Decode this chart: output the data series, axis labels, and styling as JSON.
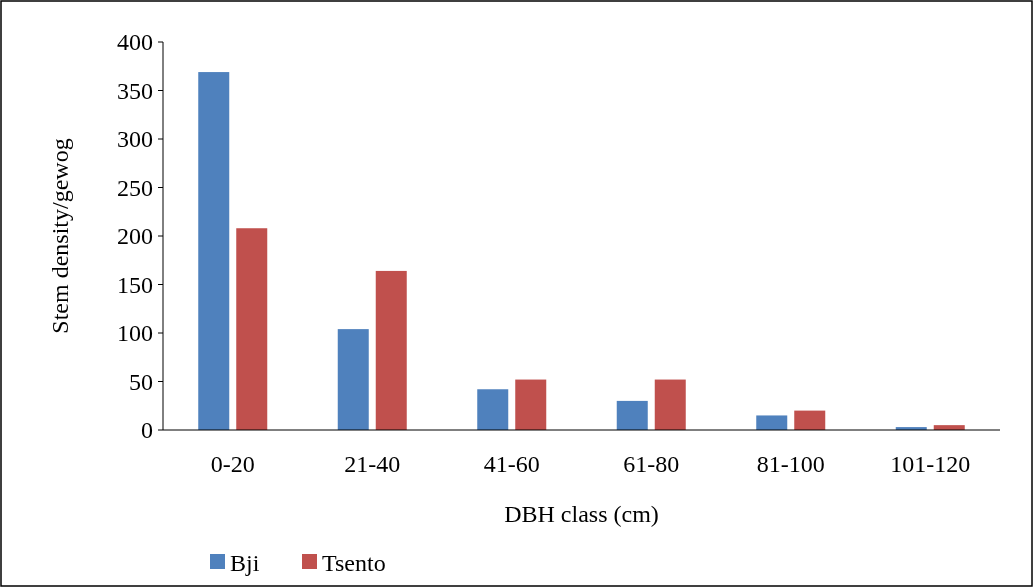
{
  "chart_data": {
    "type": "bar",
    "xlabel": "DBH class (cm)",
    "ylabel": "Stem density/gewog",
    "categories": [
      "0-20",
      "21-40",
      "41-60",
      "61-80",
      "81-100",
      "101-120"
    ],
    "series": [
      {
        "name": "Bji",
        "color": "#4f81bd",
        "values": [
          369,
          104,
          42,
          30,
          15,
          3
        ]
      },
      {
        "name": "Tsento",
        "color": "#c0504d",
        "values": [
          208,
          164,
          52,
          52,
          20,
          5
        ]
      }
    ],
    "ylim": [
      0,
      400
    ],
    "yticks": [
      0,
      50,
      100,
      150,
      200,
      250,
      300,
      350,
      400
    ],
    "grid": false,
    "legend": "bottom left"
  }
}
